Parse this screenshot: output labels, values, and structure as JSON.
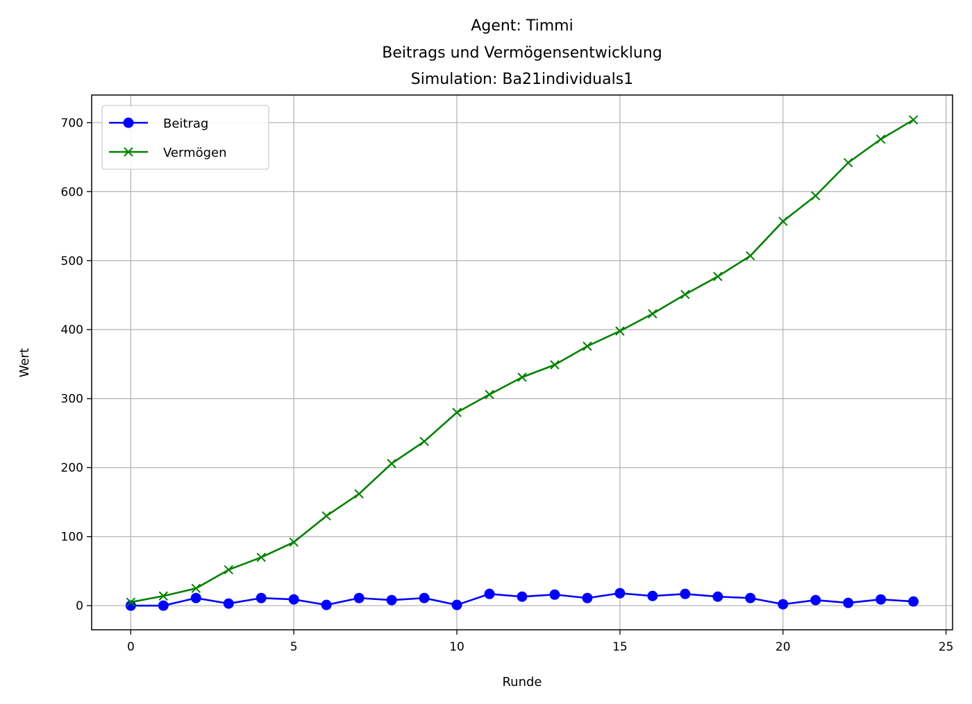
{
  "chart_data": {
    "type": "line",
    "title_lines": [
      "Agent: Timmi",
      "Beitrags und Vermögensentwicklung",
      "Simulation: Ba21individuals1"
    ],
    "xlabel": "Runde",
    "ylabel": "Wert",
    "xlim": [
      -1.2,
      25.2
    ],
    "ylim": [
      -35,
      740
    ],
    "xticks": [
      0,
      5,
      10,
      15,
      20,
      25
    ],
    "yticks": [
      0,
      100,
      200,
      300,
      400,
      500,
      600,
      700
    ],
    "grid": true,
    "legend_position": "top-left",
    "x": [
      0,
      1,
      2,
      3,
      4,
      5,
      6,
      7,
      8,
      9,
      10,
      11,
      12,
      13,
      14,
      15,
      16,
      17,
      18,
      19,
      20,
      21,
      22,
      23,
      24
    ],
    "series": [
      {
        "name": "Beitrag",
        "color": "#0000ff",
        "marker": "circle",
        "values": [
          0,
          0,
          11,
          3,
          11,
          9,
          1,
          11,
          8,
          11,
          1,
          17,
          13,
          16,
          11,
          18,
          14,
          17,
          13,
          11,
          2,
          8,
          4,
          9,
          6
        ]
      },
      {
        "name": "Vermögen",
        "color": "#008000",
        "marker": "x",
        "values": [
          5,
          14,
          25,
          52,
          70,
          92,
          130,
          162,
          206,
          238,
          280,
          306,
          331,
          349,
          376,
          398,
          423,
          451,
          477,
          507,
          557,
          594,
          642,
          676,
          704
        ]
      }
    ]
  }
}
